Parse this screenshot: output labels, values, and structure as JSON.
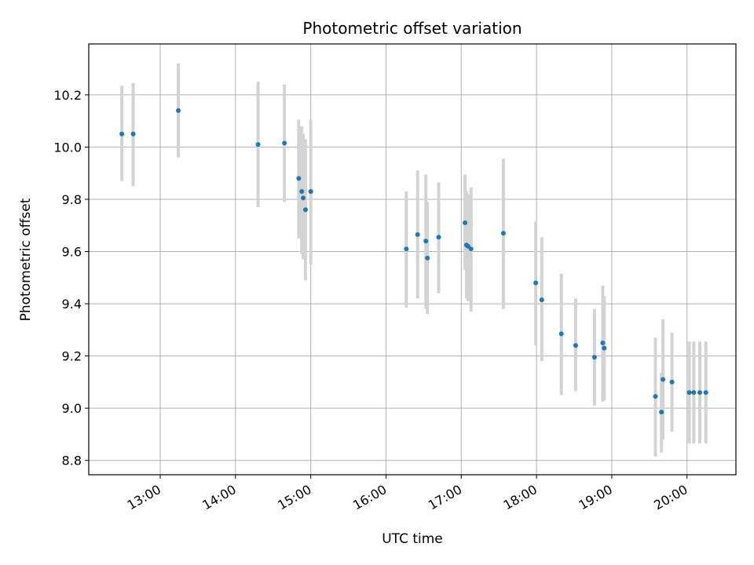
{
  "chart_data": {
    "type": "scatter",
    "title": "Photometric offset variation",
    "xlabel": "UTC time",
    "ylabel": "Photometric offset",
    "x_unit": "UTC hour of day",
    "xlim": [
      12.05,
      20.65
    ],
    "ylim": [
      8.745,
      10.395
    ],
    "grid": true,
    "colors": {
      "points": "#1f77b4",
      "error_bars": "#d3d3d3",
      "grid": "#b0b0b0"
    },
    "x_ticks": [
      {
        "value": 13,
        "label": "13:00"
      },
      {
        "value": 14,
        "label": "14:00"
      },
      {
        "value": 15,
        "label": "15:00"
      },
      {
        "value": 16,
        "label": "16:00"
      },
      {
        "value": 17,
        "label": "17:00"
      },
      {
        "value": 18,
        "label": "18:00"
      },
      {
        "value": 19,
        "label": "19:00"
      },
      {
        "value": 20,
        "label": "20:00"
      }
    ],
    "y_ticks": [
      {
        "value": 8.8,
        "label": "8.8"
      },
      {
        "value": 9.0,
        "label": "9.0"
      },
      {
        "value": 9.2,
        "label": "9.2"
      },
      {
        "value": 9.4,
        "label": "9.4"
      },
      {
        "value": 9.6,
        "label": "9.6"
      },
      {
        "value": 9.8,
        "label": "9.8"
      },
      {
        "value": 10.0,
        "label": "10.0"
      },
      {
        "value": 10.2,
        "label": "10.2"
      }
    ],
    "points": [
      {
        "x": 12.49,
        "y": 10.05,
        "ylo": 9.87,
        "yhi": 10.235
      },
      {
        "x": 12.64,
        "y": 10.05,
        "ylo": 9.85,
        "yhi": 10.245
      },
      {
        "x": 13.24,
        "y": 10.14,
        "ylo": 9.96,
        "yhi": 10.32
      },
      {
        "x": 14.3,
        "y": 10.01,
        "ylo": 9.77,
        "yhi": 10.25
      },
      {
        "x": 14.65,
        "y": 10.015,
        "ylo": 9.79,
        "yhi": 10.24
      },
      {
        "x": 14.84,
        "y": 9.88,
        "ylo": 9.65,
        "yhi": 10.105
      },
      {
        "x": 14.88,
        "y": 9.83,
        "ylo": 9.59,
        "yhi": 10.08
      },
      {
        "x": 14.9,
        "y": 9.805,
        "ylo": 9.57,
        "yhi": 10.05
      },
      {
        "x": 14.93,
        "y": 9.76,
        "ylo": 9.49,
        "yhi": 10.03
      },
      {
        "x": 15.0,
        "y": 9.83,
        "ylo": 9.55,
        "yhi": 10.105
      },
      {
        "x": 16.27,
        "y": 9.61,
        "ylo": 9.385,
        "yhi": 9.83
      },
      {
        "x": 16.42,
        "y": 9.665,
        "ylo": 9.42,
        "yhi": 9.91
      },
      {
        "x": 16.53,
        "y": 9.64,
        "ylo": 9.38,
        "yhi": 9.895
      },
      {
        "x": 16.55,
        "y": 9.575,
        "ylo": 9.36,
        "yhi": 9.79
      },
      {
        "x": 16.7,
        "y": 9.655,
        "ylo": 9.44,
        "yhi": 9.865
      },
      {
        "x": 17.05,
        "y": 9.71,
        "ylo": 9.53,
        "yhi": 9.895
      },
      {
        "x": 17.07,
        "y": 9.625,
        "ylo": 9.42,
        "yhi": 9.83
      },
      {
        "x": 17.09,
        "y": 9.62,
        "ylo": 9.41,
        "yhi": 9.82
      },
      {
        "x": 17.13,
        "y": 9.61,
        "ylo": 9.37,
        "yhi": 9.845
      },
      {
        "x": 17.56,
        "y": 9.67,
        "ylo": 9.38,
        "yhi": 9.955
      },
      {
        "x": 17.99,
        "y": 9.48,
        "ylo": 9.24,
        "yhi": 9.715
      },
      {
        "x": 18.07,
        "y": 9.415,
        "ylo": 9.18,
        "yhi": 9.655
      },
      {
        "x": 18.33,
        "y": 9.285,
        "ylo": 9.05,
        "yhi": 9.515
      },
      {
        "x": 18.52,
        "y": 9.24,
        "ylo": 9.065,
        "yhi": 9.42
      },
      {
        "x": 18.77,
        "y": 9.195,
        "ylo": 9.01,
        "yhi": 9.38
      },
      {
        "x": 18.88,
        "y": 9.25,
        "ylo": 9.025,
        "yhi": 9.47
      },
      {
        "x": 18.9,
        "y": 9.23,
        "ylo": 9.03,
        "yhi": 9.43
      },
      {
        "x": 19.58,
        "y": 9.045,
        "ylo": 8.815,
        "yhi": 9.27
      },
      {
        "x": 19.66,
        "y": 8.985,
        "ylo": 8.83,
        "yhi": 9.135
      },
      {
        "x": 19.68,
        "y": 9.11,
        "ylo": 8.88,
        "yhi": 9.34
      },
      {
        "x": 19.8,
        "y": 9.1,
        "ylo": 8.91,
        "yhi": 9.29
      },
      {
        "x": 20.03,
        "y": 9.06,
        "ylo": 8.865,
        "yhi": 9.255
      },
      {
        "x": 20.09,
        "y": 9.06,
        "ylo": 8.865,
        "yhi": 9.255
      },
      {
        "x": 20.17,
        "y": 9.06,
        "ylo": 8.865,
        "yhi": 9.255
      },
      {
        "x": 20.25,
        "y": 9.06,
        "ylo": 8.865,
        "yhi": 9.255
      }
    ]
  }
}
